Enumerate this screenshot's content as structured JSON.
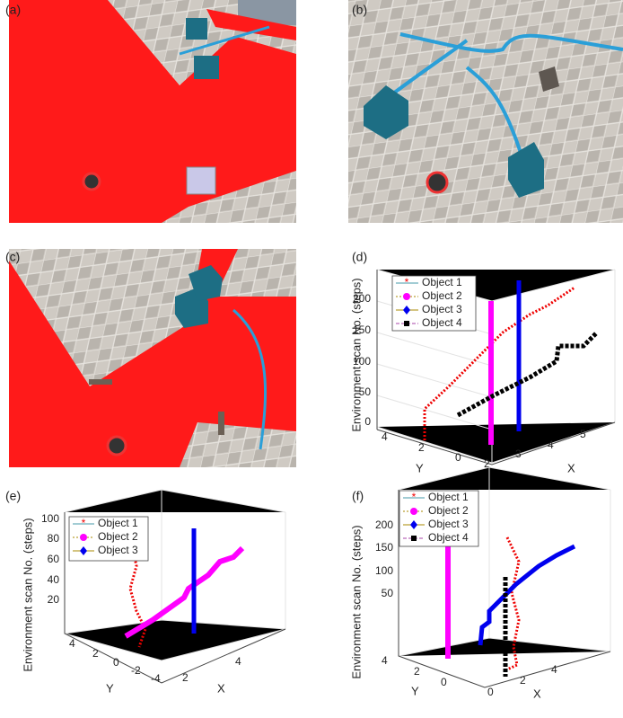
{
  "panels": [
    {
      "label": "(a)"
    },
    {
      "label": "(b)"
    },
    {
      "label": "(c)"
    },
    {
      "label": "(d)",
      "legend": [
        "Object 1",
        "Object 2",
        "Object 3",
        "Object 4"
      ],
      "z_label": "Environment scan No. (steps)",
      "x_label": "X",
      "y_label": "Y",
      "zticks": [
        0,
        50,
        100,
        150,
        200
      ],
      "xticks": [
        2,
        3,
        4,
        5
      ],
      "yticks": [
        4,
        2,
        0
      ]
    },
    {
      "label": "(e)",
      "legend": [
        "Object 1",
        "Object 2",
        "Object 3"
      ],
      "z_label": "Environment scan No. (steps)",
      "x_label": "X",
      "y_label": "Y",
      "zticks": [
        20,
        40,
        60,
        80,
        100
      ],
      "xticks": [
        2,
        4
      ],
      "yticks": [
        4,
        2,
        0,
        -2,
        -4
      ]
    },
    {
      "label": "(f)",
      "legend": [
        "Object 1",
        "Object 2",
        "Object 3",
        "Object 4"
      ],
      "z_label": "Environment scan No. (steps)",
      "x_label": "X",
      "y_label": "Y",
      "zticks": [
        50,
        100,
        150,
        200
      ],
      "xticks": [
        0,
        2,
        4
      ],
      "yticks": [
        4,
        2,
        0
      ]
    }
  ]
}
